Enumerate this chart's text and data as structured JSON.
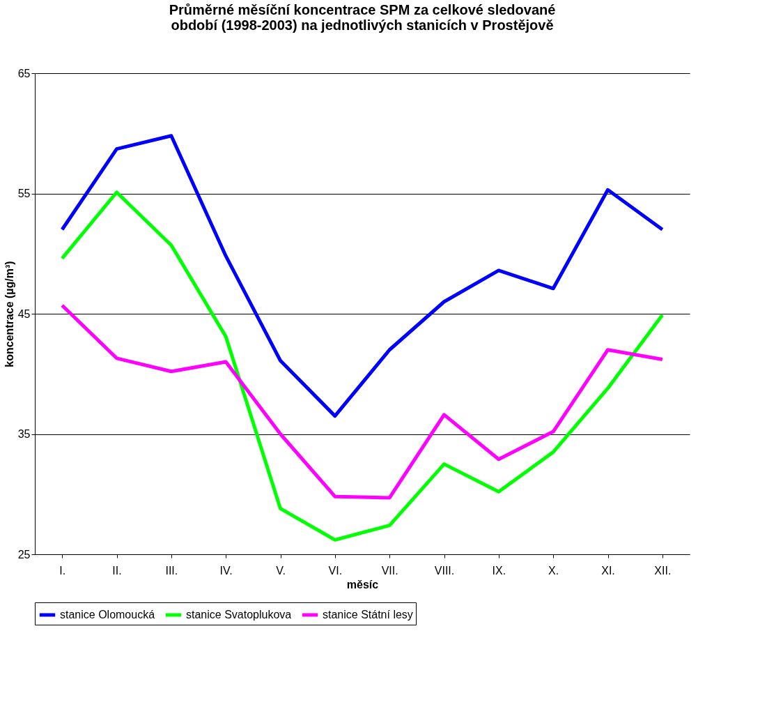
{
  "chart_data": {
    "type": "line",
    "title": [
      "Průměrné měsíční koncentrace SPM za celkové sledované",
      "období (1998-2003) na jednotlivých stanicích v Prostějově"
    ],
    "xlabel": "měsíc",
    "ylabel": "koncentrace (µg/m³)",
    "categories": [
      "I.",
      "II.",
      "III.",
      "IV.",
      "V.",
      "VI.",
      "VII.",
      "VIII.",
      "IX.",
      "X.",
      "XI.",
      "XII."
    ],
    "series": [
      {
        "name": "stanice Olomoucká",
        "color": "#0000ff",
        "values": [
          52.0,
          58.7,
          59.8,
          49.8,
          41.1,
          36.5,
          42.0,
          46.0,
          48.6,
          47.1,
          55.3,
          52.0
        ]
      },
      {
        "name": "stanice Svatoplukova",
        "color": "#00ff00",
        "values": [
          49.6,
          55.1,
          50.7,
          43.1,
          28.8,
          26.2,
          27.4,
          32.5,
          30.2,
          33.5,
          38.8,
          44.9
        ]
      },
      {
        "name": "stanice Státní lesy",
        "color": "#ff00ff",
        "values": [
          45.7,
          41.3,
          40.2,
          41.0,
          35.0,
          29.8,
          29.7,
          36.6,
          32.9,
          35.2,
          42.0,
          41.2
        ]
      }
    ],
    "ylim": [
      25,
      65
    ],
    "yticks": [
      25,
      35,
      45,
      55,
      65
    ],
    "grid": "y",
    "legend": "bottom",
    "marker": "none",
    "line_style": "solid"
  }
}
